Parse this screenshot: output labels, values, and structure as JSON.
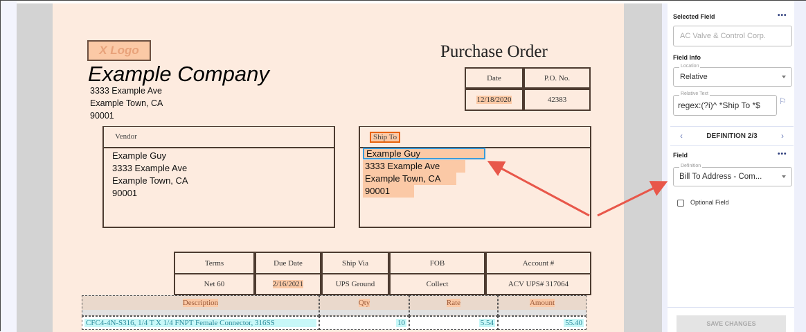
{
  "document": {
    "logo": "X Logo",
    "company": "Example Company",
    "company_address": [
      "3333 Example Ave",
      "Example Town, CA",
      "90001"
    ],
    "title": "Purchase Order",
    "date_header": "Date",
    "po_header": "P.O. No.",
    "date": "12/18/2020",
    "po_number": "42383",
    "vendor_label": "Vendor",
    "vendor_address": [
      "Example Guy",
      "3333 Example Ave",
      "Example Town, CA",
      "90001"
    ],
    "ship_to_label": "Ship To",
    "ship_to_address": [
      "Example Guy",
      "3333 Example Ave",
      "Example Town, CA",
      "90001"
    ],
    "terms_headers": [
      "Terms",
      "Due Date",
      "Ship Via",
      "FOB",
      "Account #"
    ],
    "terms_values": [
      "Net 60",
      "2/16/2021",
      "UPS Ground",
      "Collect",
      "ACV UPS# 317064"
    ],
    "item_headers": [
      "Description",
      "Qty",
      "Rate",
      "Amount"
    ],
    "items": [
      [
        "CFC4-4N-S316, 1/4 T X 1/4 FNPT Female Connector, 316SS",
        "10",
        "5.54",
        "55.40"
      ]
    ]
  },
  "panel": {
    "selected_field_title": "Selected Field",
    "selected_field_placeholder": "AC Valve & Control Corp.",
    "field_info_title": "Field Info",
    "location_label": "Location",
    "location_value": "Relative",
    "relative_text_label": "Relative Text",
    "relative_text_value": "regex:(?i)^ *Ship To *$",
    "definition_nav": "DEFINITION 2/3",
    "field_title": "Field",
    "definition_label": "Definition",
    "definition_value": "Bill To Address - Com...",
    "optional_field": "Optional Field",
    "optional_checked": false,
    "save_button": "SAVE CHANGES",
    "more": "•••"
  },
  "colors": {
    "highlight": "#fbc9a6",
    "selection": "#3a9ad9",
    "arrow": "#e8574a",
    "line_item": "#c8f8f8"
  }
}
